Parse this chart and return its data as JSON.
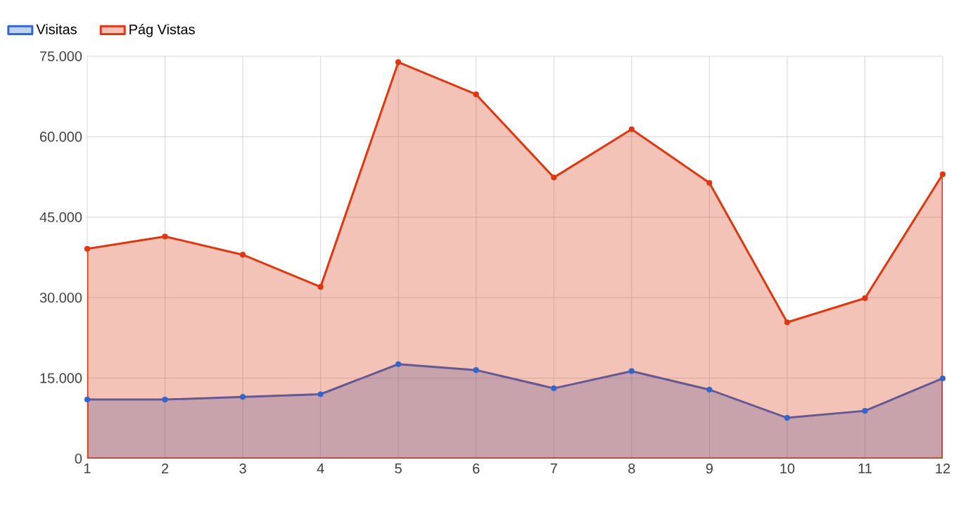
{
  "chart_data": {
    "type": "area",
    "x": [
      1,
      2,
      3,
      4,
      5,
      6,
      7,
      8,
      9,
      10,
      11,
      12
    ],
    "xlim": [
      1,
      12
    ],
    "xticks": [
      1,
      2,
      3,
      4,
      5,
      6,
      7,
      8,
      9,
      10,
      11,
      12
    ],
    "ylim": [
      0,
      75000
    ],
    "yticks": [
      {
        "value": 0,
        "label": "0"
      },
      {
        "value": 15000,
        "label": "15.000"
      },
      {
        "value": 30000,
        "label": "30.000"
      },
      {
        "value": 45000,
        "label": "45.000"
      },
      {
        "value": 60000,
        "label": "60.000"
      },
      {
        "value": 75000,
        "label": "75.000"
      }
    ],
    "grid": true,
    "legend": "top left",
    "marker": "circle",
    "line_style": "solid",
    "series": [
      {
        "name": "Visitas",
        "color": "#3366cc",
        "values": [
          11000,
          11000,
          11500,
          12000,
          17600,
          16500,
          13100,
          16300,
          12850,
          7600,
          8900,
          14950
        ]
      },
      {
        "name": "Pág Vistas",
        "color": "#dc3912",
        "values": [
          39100,
          41400,
          38000,
          32000,
          73900,
          67900,
          52400,
          61400,
          51400,
          25400,
          29900,
          53000
        ]
      }
    ]
  }
}
